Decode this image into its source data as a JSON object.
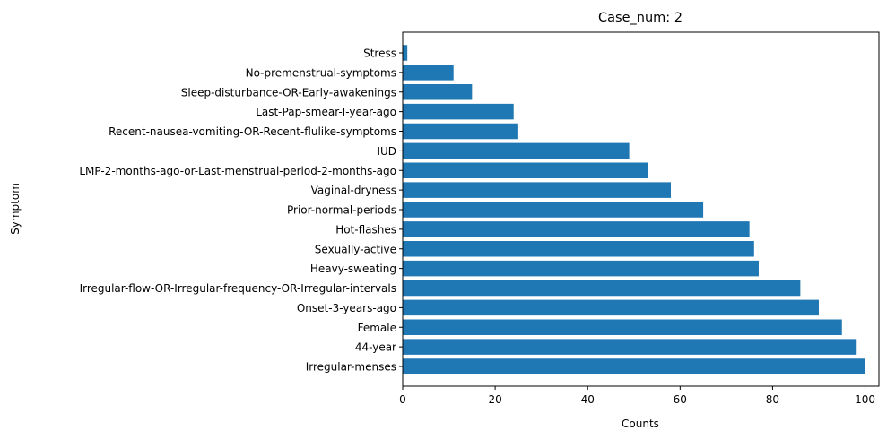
{
  "chart_data": {
    "type": "bar",
    "orientation": "horizontal",
    "title": "Case_num: 2",
    "xlabel": "Counts",
    "ylabel": "Symptom",
    "xlim": [
      0,
      103
    ],
    "xticks": [
      0,
      20,
      40,
      60,
      80,
      100
    ],
    "grid": false,
    "bar_color": "#1f77b4",
    "categories": [
      "Irregular-menses",
      "44-year",
      "Female",
      "Onset-3-years-ago",
      "Irregular-flow-OR-Irregular-frequency-OR-Irregular-intervals",
      "Heavy-sweating",
      "Sexually-active",
      "Hot-flashes",
      "Prior-normal-periods",
      "Vaginal-dryness",
      "LMP-2-months-ago-or-Last-menstrual-period-2-months-ago",
      "IUD",
      "Recent-nausea-vomiting-OR-Recent-flulike-symptoms",
      "Last-Pap-smear-I-year-ago",
      "Sleep-disturbance-OR-Early-awakenings",
      "No-premenstrual-symptoms",
      "Stress"
    ],
    "values": [
      100,
      98,
      95,
      90,
      86,
      77,
      76,
      75,
      65,
      58,
      53,
      49,
      25,
      24,
      15,
      11,
      1
    ]
  }
}
